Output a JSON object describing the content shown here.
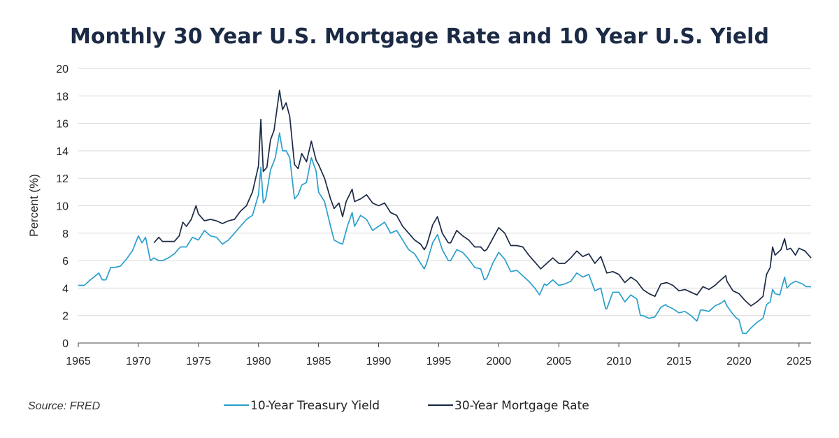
{
  "colors": {
    "treasury": "#2a9fcc",
    "mortgage": "#1b2a45"
  },
  "chart_data": {
    "type": "line",
    "title": "Monthly 30 Year U.S. Mortgage Rate and 10 Year U.S. Yield",
    "xlabel": "",
    "ylabel": "Percent (%)",
    "source": "Source: FRED",
    "xlim": [
      1965,
      2026
    ],
    "ylim": [
      0,
      20
    ],
    "xticks": [
      1965,
      1970,
      1975,
      1980,
      1985,
      1990,
      1995,
      2000,
      2005,
      2010,
      2015,
      2020,
      2025
    ],
    "xtick_labels": [
      "1965",
      "1970",
      "1975",
      "1980",
      "1985",
      "1990",
      "1995",
      "2000",
      "2005",
      "2010",
      "2015",
      "2020",
      "2025"
    ],
    "yticks": [
      0,
      2,
      4,
      6,
      8,
      10,
      12,
      14,
      16,
      18,
      20
    ],
    "ytick_labels": [
      "0",
      "2",
      "4",
      "6",
      "8",
      "10",
      "12",
      "14",
      "16",
      "18",
      "20"
    ],
    "grid": true,
    "legend_position": "bottom",
    "series": [
      {
        "name": "10-Year Treasury Yield",
        "color_key": "treasury",
        "x": [
          1965.0,
          1965.5,
          1966.0,
          1966.3,
          1966.7,
          1967.0,
          1967.3,
          1967.7,
          1968.0,
          1968.5,
          1969.0,
          1969.5,
          1970.0,
          1970.3,
          1970.6,
          1971.0,
          1971.3,
          1971.7,
          1972.0,
          1972.5,
          1973.0,
          1973.5,
          1974.0,
          1974.5,
          1975.0,
          1975.5,
          1976.0,
          1976.5,
          1977.0,
          1977.5,
          1978.0,
          1978.5,
          1979.0,
          1979.5,
          1980.0,
          1980.2,
          1980.4,
          1980.6,
          1981.0,
          1981.4,
          1981.75,
          1982.0,
          1982.3,
          1982.6,
          1983.0,
          1983.3,
          1983.6,
          1984.0,
          1984.4,
          1984.8,
          1985.0,
          1985.5,
          1986.0,
          1986.3,
          1986.7,
          1987.0,
          1987.4,
          1987.8,
          1988.0,
          1988.5,
          1989.0,
          1989.5,
          1990.0,
          1990.5,
          1991.0,
          1991.5,
          1992.0,
          1992.5,
          1993.0,
          1993.5,
          1993.8,
          1994.0,
          1994.5,
          1994.9,
          1995.3,
          1995.8,
          1996.0,
          1996.5,
          1997.0,
          1997.5,
          1998.0,
          1998.5,
          1998.8,
          1999.0,
          1999.5,
          2000.0,
          2000.5,
          2001.0,
          2001.5,
          2002.0,
          2002.5,
          2003.0,
          2003.4,
          2003.8,
          2004.0,
          2004.5,
          2005.0,
          2005.5,
          2006.0,
          2006.5,
          2007.0,
          2007.5,
          2008.0,
          2008.5,
          2008.9,
          2009.0,
          2009.5,
          2010.0,
          2010.5,
          2011.0,
          2011.5,
          2011.8,
          2012.0,
          2012.5,
          2013.0,
          2013.5,
          2013.9,
          2014.0,
          2014.5,
          2015.0,
          2015.5,
          2016.0,
          2016.5,
          2016.8,
          2017.0,
          2017.5,
          2018.0,
          2018.5,
          2018.8,
          2019.0,
          2019.5,
          2019.8,
          2020.0,
          2020.3,
          2020.6,
          2021.0,
          2021.5,
          2022.0,
          2022.3,
          2022.6,
          2022.8,
          2023.0,
          2023.4,
          2023.8,
          2024.0,
          2024.3,
          2024.7,
          2025.0,
          2025.3,
          2025.6,
          2026.0
        ],
        "values": [
          4.2,
          4.2,
          4.6,
          4.8,
          5.1,
          4.6,
          4.6,
          5.5,
          5.5,
          5.6,
          6.1,
          6.7,
          7.8,
          7.3,
          7.7,
          6.0,
          6.2,
          6.0,
          6.0,
          6.2,
          6.5,
          7.0,
          7.0,
          7.7,
          7.5,
          8.2,
          7.8,
          7.7,
          7.2,
          7.5,
          8.0,
          8.5,
          9.0,
          9.3,
          10.8,
          12.8,
          10.2,
          10.5,
          12.6,
          13.5,
          15.3,
          14.0,
          14.0,
          13.5,
          10.5,
          10.8,
          11.5,
          11.7,
          13.5,
          12.5,
          11.0,
          10.3,
          8.5,
          7.5,
          7.3,
          7.2,
          8.5,
          9.5,
          8.5,
          9.3,
          9.0,
          8.2,
          8.5,
          8.8,
          8.0,
          8.2,
          7.5,
          6.8,
          6.5,
          5.8,
          5.4,
          5.8,
          7.3,
          7.9,
          6.8,
          6.0,
          6.0,
          6.8,
          6.6,
          6.1,
          5.5,
          5.4,
          4.6,
          4.7,
          5.8,
          6.6,
          6.1,
          5.2,
          5.3,
          4.9,
          4.5,
          4.0,
          3.5,
          4.3,
          4.2,
          4.6,
          4.2,
          4.3,
          4.5,
          5.1,
          4.8,
          5.0,
          3.8,
          4.0,
          2.5,
          2.5,
          3.7,
          3.7,
          3.0,
          3.5,
          3.2,
          2.0,
          2.0,
          1.8,
          1.9,
          2.6,
          2.8,
          2.7,
          2.5,
          2.2,
          2.3,
          2.0,
          1.6,
          2.4,
          2.4,
          2.3,
          2.7,
          2.9,
          3.1,
          2.7,
          2.1,
          1.8,
          1.7,
          0.7,
          0.7,
          1.1,
          1.5,
          1.8,
          2.8,
          3.0,
          3.9,
          3.6,
          3.5,
          4.8,
          4.0,
          4.3,
          4.5,
          4.4,
          4.3,
          4.1,
          4.1
        ]
      },
      {
        "name": "30-Year Mortgage Rate",
        "color_key": "mortgage",
        "x": [
          1971.3,
          1971.7,
          1972.0,
          1972.5,
          1973.0,
          1973.4,
          1973.7,
          1974.0,
          1974.4,
          1974.8,
          1975.0,
          1975.5,
          1976.0,
          1976.5,
          1977.0,
          1977.5,
          1978.0,
          1978.5,
          1979.0,
          1979.5,
          1980.0,
          1980.2,
          1980.4,
          1980.7,
          1981.0,
          1981.3,
          1981.75,
          1982.0,
          1982.3,
          1982.6,
          1983.0,
          1983.3,
          1983.6,
          1984.0,
          1984.4,
          1984.8,
          1985.0,
          1985.5,
          1986.0,
          1986.3,
          1986.7,
          1987.0,
          1987.3,
          1987.8,
          1988.0,
          1988.5,
          1989.0,
          1989.5,
          1990.0,
          1990.5,
          1991.0,
          1991.5,
          1992.0,
          1992.5,
          1993.0,
          1993.5,
          1993.8,
          1994.0,
          1994.5,
          1994.9,
          1995.3,
          1995.8,
          1996.0,
          1996.5,
          1997.0,
          1997.5,
          1998.0,
          1998.5,
          1998.8,
          1999.0,
          1999.5,
          2000.0,
          2000.5,
          2001.0,
          2001.5,
          2002.0,
          2002.5,
          2003.0,
          2003.5,
          2004.0,
          2004.5,
          2005.0,
          2005.5,
          2006.0,
          2006.5,
          2007.0,
          2007.5,
          2008.0,
          2008.5,
          2009.0,
          2009.5,
          2010.0,
          2010.5,
          2011.0,
          2011.5,
          2012.0,
          2012.5,
          2013.0,
          2013.5,
          2014.0,
          2014.5,
          2015.0,
          2015.5,
          2016.0,
          2016.5,
          2017.0,
          2017.5,
          2018.0,
          2018.5,
          2018.9,
          2019.0,
          2019.5,
          2020.0,
          2020.5,
          2021.0,
          2021.5,
          2022.0,
          2022.3,
          2022.6,
          2022.8,
          2023.0,
          2023.5,
          2023.8,
          2024.0,
          2024.3,
          2024.7,
          2025.0,
          2025.5,
          2026.0
        ],
        "values": [
          7.3,
          7.7,
          7.4,
          7.4,
          7.4,
          7.8,
          8.8,
          8.5,
          9.0,
          10.0,
          9.4,
          8.9,
          9.0,
          8.9,
          8.7,
          8.9,
          9.0,
          9.6,
          10.0,
          11.0,
          12.9,
          16.3,
          12.5,
          12.8,
          14.8,
          15.5,
          18.4,
          17.0,
          17.5,
          16.5,
          13.0,
          12.7,
          13.8,
          13.2,
          14.7,
          13.3,
          13.0,
          12.0,
          10.5,
          9.8,
          10.2,
          9.2,
          10.3,
          11.2,
          10.3,
          10.5,
          10.8,
          10.2,
          10.0,
          10.2,
          9.5,
          9.3,
          8.5,
          8.0,
          7.5,
          7.2,
          6.8,
          7.1,
          8.6,
          9.2,
          8.0,
          7.3,
          7.3,
          8.2,
          7.8,
          7.5,
          7.0,
          7.0,
          6.7,
          6.8,
          7.6,
          8.4,
          8.0,
          7.1,
          7.1,
          7.0,
          6.4,
          5.9,
          5.4,
          5.8,
          6.2,
          5.8,
          5.8,
          6.2,
          6.7,
          6.3,
          6.5,
          5.8,
          6.3,
          5.1,
          5.2,
          5.0,
          4.4,
          4.8,
          4.5,
          3.9,
          3.6,
          3.4,
          4.3,
          4.4,
          4.2,
          3.8,
          3.9,
          3.7,
          3.5,
          4.1,
          3.9,
          4.2,
          4.6,
          4.9,
          4.5,
          3.8,
          3.6,
          3.1,
          2.7,
          3.0,
          3.4,
          5.0,
          5.5,
          7.0,
          6.4,
          6.8,
          7.6,
          6.8,
          6.9,
          6.4,
          6.9,
          6.7,
          6.2
        ]
      }
    ]
  }
}
